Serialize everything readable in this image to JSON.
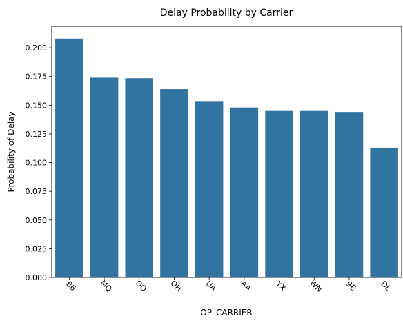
{
  "chart_data": {
    "type": "bar",
    "title": "Delay Probability by Carrier",
    "xlabel": "OP_CARRIER",
    "ylabel": "Probability of Delay",
    "categories": [
      "B6",
      "MQ",
      "OO",
      "OH",
      "UA",
      "AA",
      "YX",
      "WN",
      "9E",
      "DL"
    ],
    "values": [
      0.208,
      0.174,
      0.1735,
      0.164,
      0.153,
      0.148,
      0.145,
      0.145,
      0.1435,
      0.113
    ],
    "ylim": [
      0,
      0.2187
    ],
    "yticks": [
      "0.000",
      "0.025",
      "0.050",
      "0.075",
      "0.100",
      "0.125",
      "0.150",
      "0.175",
      "0.200"
    ],
    "grid": false,
    "bar_color": "#3274a1"
  }
}
